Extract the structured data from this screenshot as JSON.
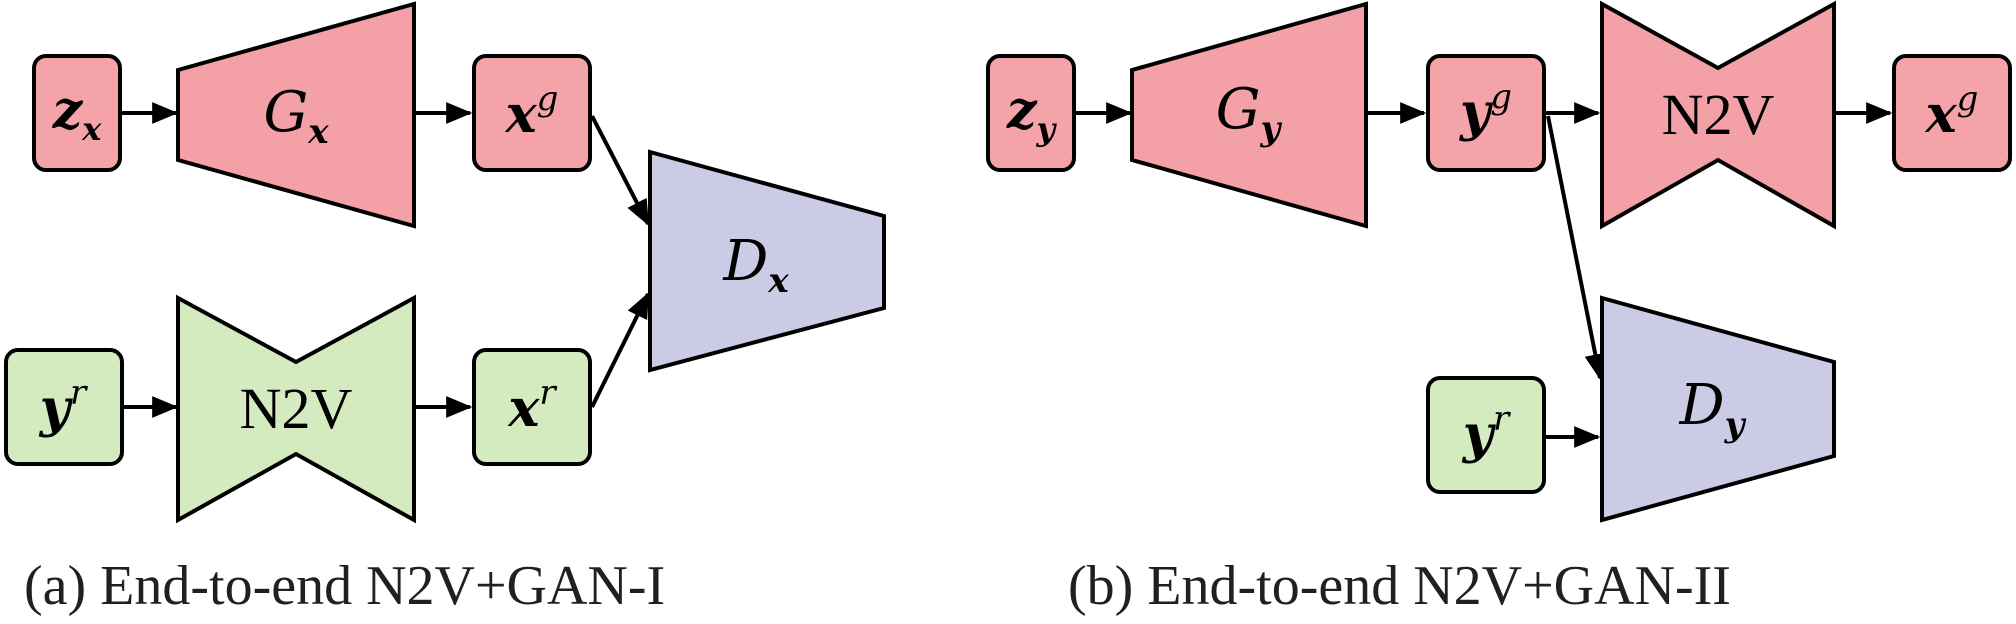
{
  "panels": [
    {
      "caption": "(a) End-to-end N2V+GAN-I",
      "nodes": {
        "zx": {
          "base": "z",
          "sub": "x"
        },
        "Gx": {
          "base": "G",
          "sub": "x"
        },
        "xg": {
          "base": "x",
          "sup": "g"
        },
        "yr": {
          "base": "y",
          "sup": "r"
        },
        "n2v": {
          "label": "N2V"
        },
        "xr": {
          "base": "x",
          "sup": "r"
        },
        "Dx": {
          "base": "D",
          "sub": "x"
        }
      }
    },
    {
      "caption": "(b) End-to-end N2V+GAN-II",
      "nodes": {
        "zy": {
          "base": "z",
          "sub": "y"
        },
        "Gy": {
          "base": "G",
          "sub": "y"
        },
        "yg": {
          "base": "y",
          "sup": "g"
        },
        "n2v": {
          "label": "N2V"
        },
        "xg": {
          "base": "x",
          "sup": "g"
        },
        "yr": {
          "base": "y",
          "sup": "r"
        },
        "Dy": {
          "base": "D",
          "sub": "y"
        }
      }
    }
  ]
}
